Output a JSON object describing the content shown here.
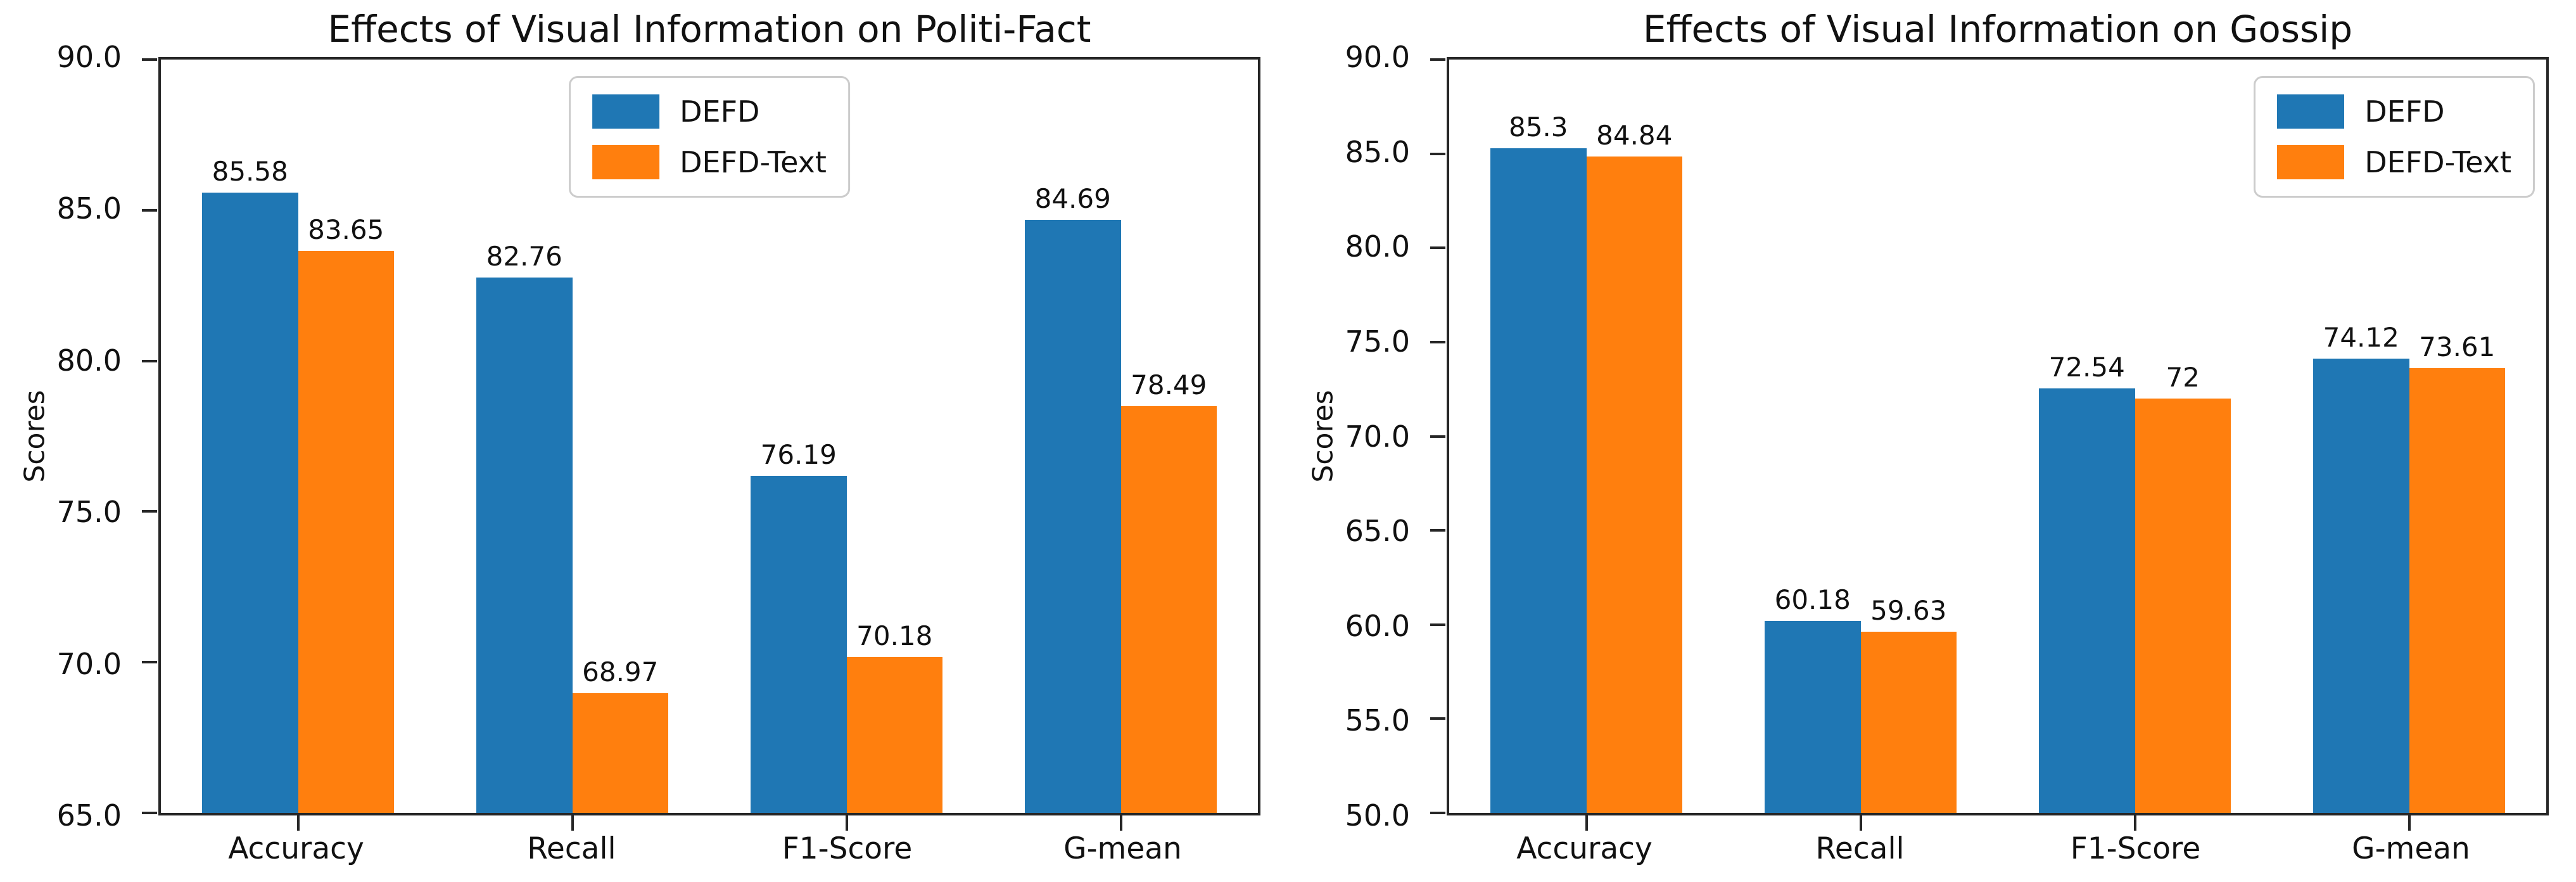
{
  "page": {
    "background": "#ffffff"
  },
  "chart_data": [
    {
      "type": "bar",
      "title": "Effects of Visual Information on Politi-Fact",
      "xlabel": "",
      "ylabel": "Scores",
      "categories": [
        "Accuracy",
        "Recall",
        "F1-Score",
        "G-mean"
      ],
      "series": [
        {
          "name": "DEFD",
          "color": "#1f77b4",
          "values": [
            85.58,
            82.76,
            76.19,
            84.69
          ],
          "value_labels": [
            "85.58",
            "82.76",
            "76.19",
            "84.69"
          ]
        },
        {
          "name": "DEFD-Text",
          "color": "#ff7f0e",
          "values": [
            83.65,
            68.97,
            70.18,
            78.49
          ],
          "value_labels": [
            "83.65",
            "68.97",
            "70.18",
            "78.49"
          ]
        }
      ],
      "ylim": [
        65.0,
        90.0
      ],
      "ytick_labels": [
        "65.0",
        "70.0",
        "75.0",
        "80.0",
        "85.0",
        "90.0"
      ],
      "grid": "off",
      "legend_position": "upper-center"
    },
    {
      "type": "bar",
      "title": "Effects of Visual Information on Gossip",
      "xlabel": "",
      "ylabel": "Scores",
      "categories": [
        "Accuracy",
        "Recall",
        "F1-Score",
        "G-mean"
      ],
      "series": [
        {
          "name": "DEFD",
          "color": "#1f77b4",
          "values": [
            85.3,
            60.18,
            72.54,
            74.12
          ],
          "value_labels": [
            "85.3",
            "60.18",
            "72.54",
            "74.12"
          ]
        },
        {
          "name": "DEFD-Text",
          "color": "#ff7f0e",
          "values": [
            84.84,
            59.63,
            72,
            73.61
          ],
          "value_labels": [
            "84.84",
            "59.63",
            "72",
            "73.61"
          ]
        }
      ],
      "ylim": [
        50.0,
        90.0
      ],
      "ytick_labels": [
        "50.0",
        "55.0",
        "60.0",
        "65.0",
        "70.0",
        "75.0",
        "80.0",
        "85.0",
        "90.0"
      ],
      "grid": "off",
      "legend_position": "upper-right"
    }
  ]
}
